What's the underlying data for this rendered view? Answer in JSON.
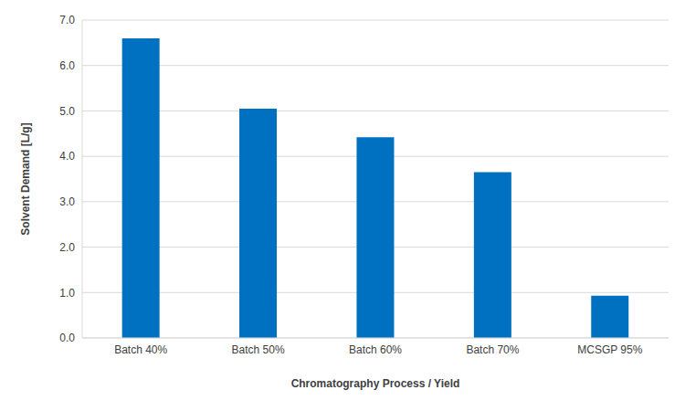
{
  "chart_data": {
    "type": "bar",
    "x_label": "Chromatography Process / Yield",
    "y_label": "Solvent Demand [L/g]",
    "categories": [
      "Batch 40%",
      "Batch 50%",
      "Batch 60%",
      "Batch 70%",
      "MCSGP 95%"
    ],
    "values": [
      6.6,
      5.05,
      4.42,
      3.65,
      0.93
    ],
    "color": "#0070c0",
    "ylim": [
      0,
      7
    ],
    "yticks": [
      {
        "value": 0,
        "label": "0.0"
      },
      {
        "value": 1,
        "label": "1.0"
      },
      {
        "value": 2,
        "label": "2.0"
      },
      {
        "value": 3,
        "label": "3.0"
      },
      {
        "value": 4,
        "label": "4.0"
      },
      {
        "value": 5,
        "label": "5.0"
      },
      {
        "value": 6,
        "label": "6.0"
      },
      {
        "value": 7,
        "label": "7.0"
      }
    ],
    "grid": true
  }
}
